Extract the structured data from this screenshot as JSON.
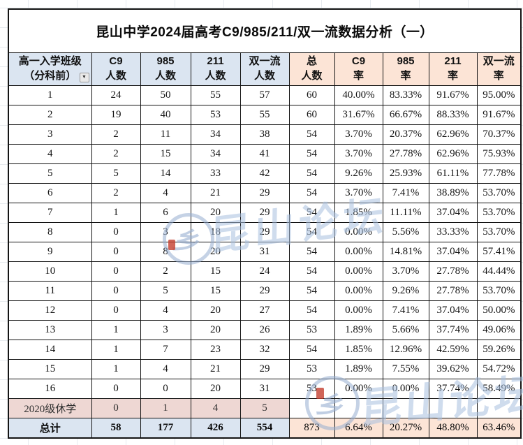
{
  "title": "昆山中学2024届高考C9/985/211/双一流数据分析（一）",
  "icons": {
    "filter_dropdown": "▼",
    "watermark_logo_glyph": "乡"
  },
  "table": {
    "column_keys": [
      "class",
      "c9_count",
      "p985_count",
      "p211_count",
      "syl_count",
      "total_count",
      "c9_rate",
      "p985_rate",
      "p211_rate",
      "syl_rate"
    ],
    "headers": [
      {
        "l1": "高一入学班级",
        "l2": "（分科前）"
      },
      {
        "l1": "C9",
        "l2": "人数"
      },
      {
        "l1": "985",
        "l2": "人数"
      },
      {
        "l1": "211",
        "l2": "人数"
      },
      {
        "l1": "双一流",
        "l2": "人数"
      },
      {
        "l1": "总",
        "l2": "人数"
      },
      {
        "l1": "C9",
        "l2": "率"
      },
      {
        "l1": "985",
        "l2": "率"
      },
      {
        "l1": "211",
        "l2": "率"
      },
      {
        "l1": "双一流",
        "l2": "率"
      }
    ],
    "rows": [
      [
        "1",
        "24",
        "50",
        "55",
        "57",
        "60",
        "40.00%",
        "83.33%",
        "91.67%",
        "95.00%"
      ],
      [
        "2",
        "19",
        "40",
        "53",
        "55",
        "60",
        "31.67%",
        "66.67%",
        "88.33%",
        "91.67%"
      ],
      [
        "3",
        "2",
        "11",
        "34",
        "38",
        "54",
        "3.70%",
        "20.37%",
        "62.96%",
        "70.37%"
      ],
      [
        "4",
        "2",
        "15",
        "34",
        "41",
        "54",
        "3.70%",
        "27.78%",
        "62.96%",
        "75.93%"
      ],
      [
        "5",
        "5",
        "14",
        "33",
        "42",
        "54",
        "9.26%",
        "25.93%",
        "61.11%",
        "77.78%"
      ],
      [
        "6",
        "2",
        "4",
        "21",
        "29",
        "54",
        "3.70%",
        "7.41%",
        "38.89%",
        "53.70%"
      ],
      [
        "7",
        "1",
        "6",
        "20",
        "29",
        "54",
        "1.85%",
        "11.11%",
        "37.04%",
        "53.70%"
      ],
      [
        "8",
        "0",
        "3",
        "18",
        "29",
        "54",
        "0.00%",
        "5.56%",
        "33.33%",
        "53.70%"
      ],
      [
        "9",
        "0",
        "8",
        "20",
        "31",
        "54",
        "0.00%",
        "14.81%",
        "37.04%",
        "57.41%"
      ],
      [
        "10",
        "0",
        "2",
        "15",
        "24",
        "54",
        "0.00%",
        "3.70%",
        "27.78%",
        "44.44%"
      ],
      [
        "11",
        "0",
        "5",
        "15",
        "29",
        "54",
        "0.00%",
        "9.26%",
        "27.78%",
        "53.70%"
      ],
      [
        "12",
        "0",
        "4",
        "20",
        "27",
        "54",
        "0.00%",
        "7.41%",
        "37.04%",
        "50.00%"
      ],
      [
        "13",
        "1",
        "3",
        "20",
        "26",
        "53",
        "1.89%",
        "5.66%",
        "37.74%",
        "49.06%"
      ],
      [
        "14",
        "1",
        "7",
        "23",
        "32",
        "54",
        "1.85%",
        "12.96%",
        "42.59%",
        "59.26%"
      ],
      [
        "15",
        "1",
        "4",
        "21",
        "29",
        "53",
        "1.89%",
        "7.55%",
        "39.62%",
        "54.72%"
      ],
      [
        "16",
        "0",
        "0",
        "20",
        "31",
        "53",
        "0.00%",
        "0.00%",
        "37.74%",
        "58.49%"
      ]
    ],
    "suspend_row": {
      "label": "2020级休学",
      "values": [
        "0",
        "1",
        "4",
        "5",
        "",
        "",
        "",
        "",
        ""
      ]
    },
    "total_row": {
      "label": "总计",
      "values": [
        "58",
        "177",
        "426",
        "554",
        "873",
        "6.64%",
        "20.27%",
        "48.80%",
        "63.46%"
      ]
    }
  },
  "watermark": {
    "text": "昆山论坛"
  },
  "colors": {
    "header_blue": "#dbe5f1",
    "header_peach": "#fce4d6",
    "suspend_pink": "#eed7d3",
    "border_black": "#141414",
    "watermark_blue": "#a9c1e0",
    "seal_red": "#c43e30"
  }
}
